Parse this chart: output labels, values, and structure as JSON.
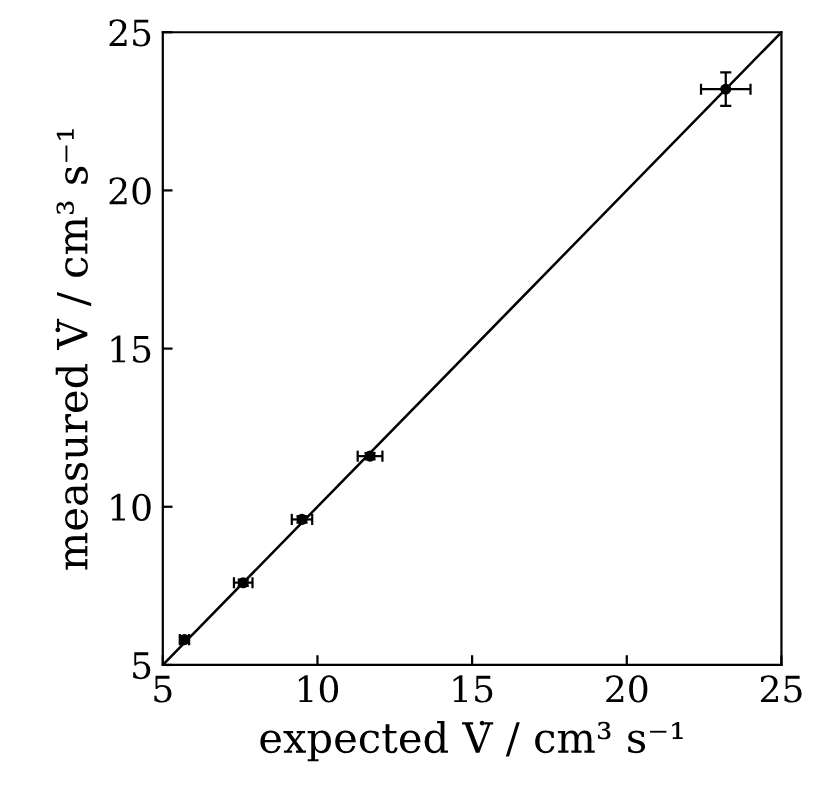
{
  "chart_data": {
    "type": "scatter",
    "xlabel": "expected V̇ / cm³ s⁻¹",
    "ylabel": "measured V̇ / cm³ s⁻¹",
    "xlim": [
      5,
      25
    ],
    "ylim": [
      5,
      25
    ],
    "xticks": [
      5,
      10,
      15,
      20,
      25
    ],
    "yticks": [
      5,
      10,
      15,
      20,
      25
    ],
    "grid": false,
    "series": [
      {
        "marker": "circle",
        "color": "#000000",
        "x": [
          5.7,
          7.6,
          9.5,
          11.7,
          23.2
        ],
        "values": [
          5.8,
          7.6,
          9.6,
          11.6,
          23.2
        ],
        "xerrors": [
          0.15,
          0.3,
          0.33,
          0.4,
          0.8
        ],
        "errors": [
          0.1,
          0.1,
          0.1,
          0.1,
          0.53
        ]
      },
      {
        "type": "line",
        "color": "#000000",
        "x": [
          5,
          25
        ],
        "values": [
          5,
          25
        ],
        "line_style": "solid"
      }
    ]
  }
}
